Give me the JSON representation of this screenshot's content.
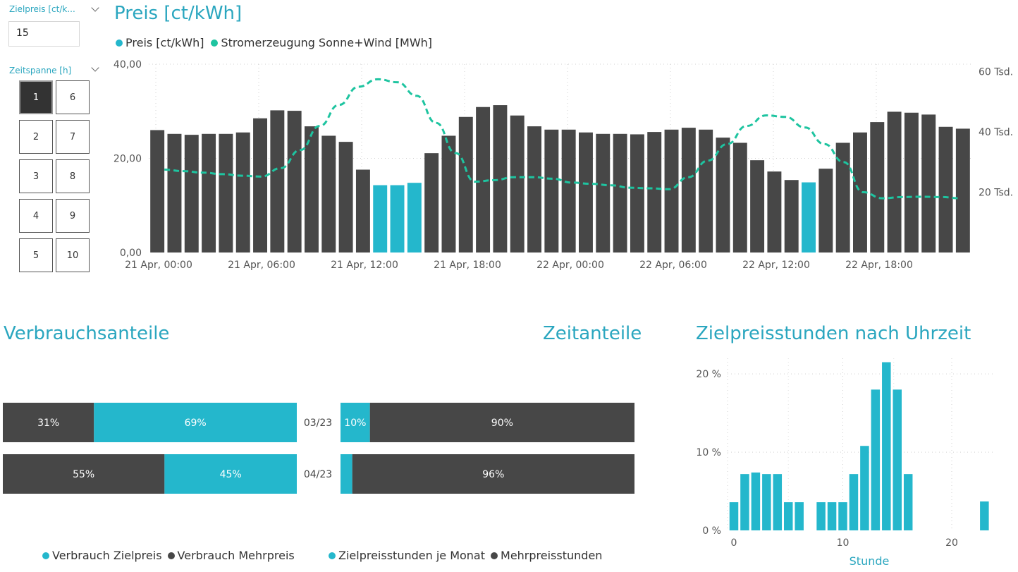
{
  "slicers": {
    "zielpreis": {
      "title": "Zielpreis [ct/k...",
      "value": "15"
    },
    "zeitspanne": {
      "title": "Zeitspanne [h]",
      "options": [
        "1",
        "2",
        "3",
        "4",
        "5",
        "6",
        "7",
        "8",
        "9",
        "10"
      ],
      "selected": "1"
    }
  },
  "main_chart": {
    "title": "Preis [ct/kWh]",
    "legend": [
      "Preis [ct/kWh]",
      "Stromerzeugung Sonne+Wind [MWh]"
    ]
  },
  "verbrauch": {
    "title": "Verbrauchsanteile",
    "legend": [
      "Verbrauch Zielpreis",
      "Verbrauch Mehrpreis"
    ]
  },
  "zeit": {
    "title": "Zeitanteile",
    "legend": [
      "Zielpreisstunden je Monat",
      "Mehrpreisstunden"
    ]
  },
  "hist": {
    "title": "Zielpreisstunden nach Uhrzeit"
  },
  "colors": {
    "teal": "#24b7cc",
    "dark": "#474747",
    "green": "#1ec4a0",
    "title": "#2aa6bf"
  },
  "chart_data": [
    {
      "type": "bar",
      "title": "Preis [ct/kWh]",
      "x_tick_labels": [
        "21 Apr, 00:00",
        "21 Apr, 06:00",
        "21 Apr, 12:00",
        "21 Apr, 18:00",
        "22 Apr, 00:00",
        "22 Apr, 06:00",
        "22 Apr, 12:00",
        "22 Apr, 18:00"
      ],
      "y_tick_labels": [
        "0,00",
        "20,00",
        "40,00"
      ],
      "y2_tick_labels": [
        "20 Tsd.",
        "40 Tsd.",
        "60 Tsd."
      ],
      "ylim": [
        0,
        40
      ],
      "y2lim": [
        0,
        62500
      ],
      "series": [
        {
          "name": "Preis [ct/kWh]",
          "values": [
            26,
            25.2,
            25,
            25.2,
            25.2,
            25.5,
            28.5,
            30.2,
            30.1,
            26.8,
            24.8,
            23.5,
            17.6,
            14.3,
            14.3,
            14.8,
            21.1,
            24.8,
            28.8,
            30.9,
            31.3,
            29.1,
            26.8,
            26.1,
            26.1,
            25.5,
            25.2,
            25.2,
            25.1,
            25.6,
            26.1,
            26.5,
            26.1,
            24.4,
            23.3,
            19.6,
            17.2,
            15.4,
            14.9,
            17.8,
            23.3,
            25.5,
            27.7,
            29.9,
            29.7,
            29.3,
            26.7,
            26.3
          ],
          "highlight": [
            false,
            false,
            false,
            false,
            false,
            false,
            false,
            false,
            false,
            false,
            false,
            false,
            false,
            true,
            true,
            true,
            false,
            false,
            false,
            false,
            false,
            false,
            false,
            false,
            false,
            false,
            false,
            false,
            false,
            false,
            false,
            false,
            false,
            false,
            false,
            false,
            false,
            false,
            true,
            false,
            false,
            false,
            false,
            false,
            false,
            false,
            false,
            false
          ]
        },
        {
          "name": "Stromerzeugung Sonne+Wind [MWh]",
          "values": [
            27500,
            27000,
            26500,
            26000,
            25500,
            25200,
            28000,
            34000,
            42000,
            49000,
            55000,
            57500,
            56500,
            52000,
            43000,
            33000,
            23500,
            24000,
            25000,
            25000,
            24500,
            23200,
            22800,
            22300,
            21500,
            21300,
            21000,
            25000,
            30500,
            36000,
            42000,
            45500,
            45000,
            41500,
            36000,
            30000,
            20000,
            18000,
            18400,
            18500,
            18400,
            18000
          ]
        }
      ]
    },
    {
      "type": "bar",
      "title": "Verbrauchsanteile",
      "categories": [
        "03/23",
        "04/23"
      ],
      "series": [
        {
          "name": "Verbrauch Mehrpreis",
          "values": [
            31,
            55
          ]
        },
        {
          "name": "Verbrauch Zielpreis",
          "values": [
            69,
            45
          ]
        }
      ]
    },
    {
      "type": "bar",
      "title": "Zeitanteile",
      "categories": [
        "03/23",
        "04/23"
      ],
      "series": [
        {
          "name": "Zielpreisstunden je Monat",
          "values": [
            10,
            4
          ]
        },
        {
          "name": "Mehrpreisstunden",
          "values": [
            90,
            96
          ]
        }
      ]
    },
    {
      "type": "bar",
      "title": "Zielpreisstunden nach Uhrzeit",
      "xlabel": "Stunde",
      "x_tick_labels": [
        "0",
        "10",
        "20"
      ],
      "y_tick_labels": [
        "0 %",
        "10 %",
        "20 %"
      ],
      "ylim": [
        0,
        22
      ],
      "categories": [
        0,
        1,
        2,
        3,
        4,
        5,
        6,
        7,
        8,
        9,
        10,
        11,
        12,
        13,
        14,
        15,
        16,
        17,
        18,
        19,
        20,
        21,
        22,
        23
      ],
      "values": [
        3.6,
        7.2,
        7.4,
        7.2,
        7.2,
        3.6,
        3.6,
        0,
        3.6,
        3.6,
        3.6,
        7.2,
        10.8,
        18,
        21.5,
        18,
        7.2,
        0,
        0,
        0,
        0,
        0,
        0,
        3.7
      ]
    }
  ]
}
